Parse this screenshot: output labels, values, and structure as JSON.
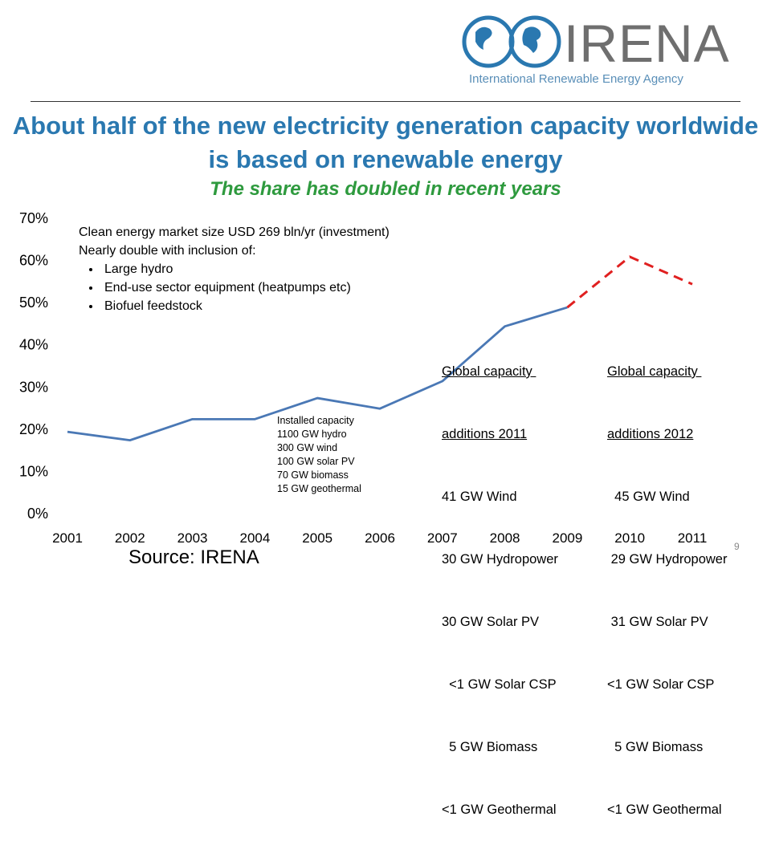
{
  "logo": {
    "name": "IRENA",
    "tagline": "International Renewable Energy Agency"
  },
  "title": "About half of the new electricity generation capacity worldwide is based on renewable energy",
  "subtitle": "The share has doubled in recent years",
  "notes": {
    "line1": "Clean energy market size USD 269 bln/yr (investment)",
    "line2": "Nearly double with inclusion of:",
    "bullets": [
      "Large hydro",
      "End-use sector equipment (heatpumps etc)",
      "Biofuel feedstock"
    ]
  },
  "installed": {
    "heading": "Installed capacity",
    "lines": [
      "1100 GW hydro",
      "300 GW wind",
      "100 GW solar PV",
      "70 GW biomass",
      "15 GW geothermal"
    ]
  },
  "additions_2011": {
    "heading_1": "Global capacity ",
    "heading_2": "additions 2011",
    "lines": [
      "41 GW Wind",
      "30 GW Hydropower",
      "30 GW Solar PV",
      "  <1 GW Solar CSP",
      "  5 GW Biomass",
      "<1 GW Geothermal"
    ]
  },
  "additions_2012": {
    "heading_1": "Global capacity ",
    "heading_2": "additions 2012",
    "lines": [
      "  45 GW Wind",
      " 29 GW Hydropower",
      " 31 GW Solar PV",
      "<1 GW Solar CSP",
      "  5 GW Biomass",
      "<1 GW Geothermal"
    ]
  },
  "source": "Source: IRENA",
  "page_number": "9",
  "colors": {
    "title": "#2a78b0",
    "subtitle": "#2e9a3e",
    "actual_line": "#4a78b5",
    "projected_line": "#e02020"
  },
  "chart_data": {
    "type": "line",
    "x": [
      "2001",
      "2002",
      "2003",
      "2004",
      "2005",
      "2006",
      "2007",
      "2008",
      "2009",
      "2010",
      "2011"
    ],
    "ylim": [
      0,
      70
    ],
    "yticks": [
      0,
      10,
      20,
      30,
      40,
      50,
      60,
      70
    ],
    "ytick_labels": [
      "0%",
      "10%",
      "20%",
      "30%",
      "40%",
      "50%",
      "60%",
      "70%"
    ],
    "grid": false,
    "series": [
      {
        "style": "solid",
        "color": "#4a78b5",
        "x": [
          "2001",
          "2002",
          "2003",
          "2004",
          "2005",
          "2006",
          "2007",
          "2008",
          "2009"
        ],
        "values": [
          19,
          17,
          22,
          22,
          27,
          24.5,
          31,
          44,
          48.5
        ]
      },
      {
        "style": "dashed",
        "color": "#e02020",
        "x": [
          "2009",
          "2010",
          "2011"
        ],
        "values": [
          48.5,
          60.5,
          54
        ]
      }
    ]
  }
}
